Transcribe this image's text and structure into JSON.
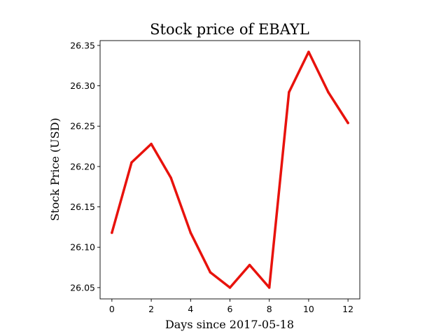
{
  "chart_data": {
    "type": "line",
    "title": "Stock price of EBAYL",
    "xlabel": "Days since 2017-05-18",
    "ylabel": "Stock Price (USD)",
    "x": [
      0,
      1,
      2,
      3,
      4,
      5,
      6,
      7,
      8,
      9,
      10,
      11,
      12
    ],
    "series": [
      {
        "values": [
          26.118,
          26.205,
          26.228,
          26.186,
          26.118,
          26.069,
          26.05,
          26.078,
          26.05,
          26.292,
          26.342,
          26.292,
          26.254
        ]
      }
    ],
    "xlim": [
      -0.6,
      12.6
    ],
    "ylim": [
      26.036,
      26.356
    ],
    "xticks": [
      0,
      2,
      4,
      6,
      8,
      10,
      12
    ],
    "xtick_labels": [
      "0",
      "2",
      "4",
      "6",
      "8",
      "10",
      "12"
    ],
    "yticks": [
      26.05,
      26.1,
      26.15,
      26.2,
      26.25,
      26.3,
      26.35
    ],
    "ytick_labels": [
      "26.05",
      "26.10",
      "26.15",
      "26.20",
      "26.25",
      "26.30",
      "26.35"
    ],
    "grid": false,
    "line_color": "#e8120c"
  }
}
